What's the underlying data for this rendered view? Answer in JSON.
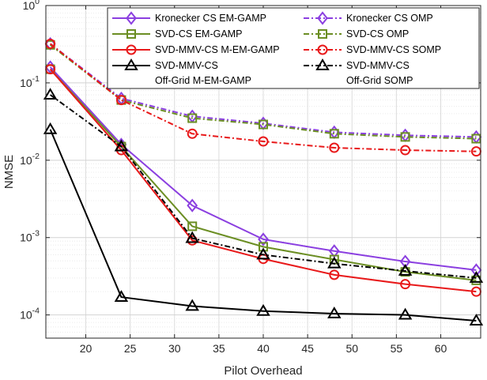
{
  "chart_data": {
    "type": "line",
    "title": "",
    "xlabel": "Pilot Overhead",
    "ylabel": "NMSE",
    "yscale": "log",
    "xlim": [
      15.5,
      64.5
    ],
    "ylim_exponents": [
      -4.3,
      0
    ],
    "grid": true,
    "legend_position": "top-right",
    "x": [
      16,
      24,
      32,
      40,
      48,
      56,
      64
    ],
    "x_ticks": [
      "20",
      "25",
      "30",
      "35",
      "40",
      "45",
      "50",
      "55",
      "60"
    ],
    "y_ticks": [
      {
        "base": "10",
        "exp": "0",
        "exponent": 0
      },
      {
        "base": "10",
        "exp": "-1",
        "exponent": -1
      },
      {
        "base": "10",
        "exp": "-2",
        "exponent": -2
      },
      {
        "base": "10",
        "exp": "-3",
        "exponent": -3
      },
      {
        "base": "10",
        "exp": "-4",
        "exponent": -4
      }
    ],
    "series": [
      {
        "name": [
          "Kronecker CS EM-GAMP"
        ],
        "color": "#8B3FE0",
        "dash": "solid",
        "marker": "diamond",
        "values": [
          0.16,
          0.016,
          0.0026,
          0.00095,
          0.00067,
          0.00049,
          0.00038
        ]
      },
      {
        "name": [
          "Kronecker CS OMP"
        ],
        "color": "#8B3FE0",
        "dash": "dashdot",
        "marker": "diamond",
        "values": [
          0.32,
          0.063,
          0.037,
          0.03,
          0.023,
          0.021,
          0.02
        ]
      },
      {
        "name": [
          "SVD-CS EM-GAMP"
        ],
        "color": "#6B8E23",
        "dash": "solid",
        "marker": "square",
        "values": [
          0.15,
          0.015,
          0.0014,
          0.00076,
          0.00052,
          0.00036,
          0.00028
        ]
      },
      {
        "name": [
          "SVD-CS OMP"
        ],
        "color": "#6B8E23",
        "dash": "dashdot",
        "marker": "square",
        "values": [
          0.31,
          0.06,
          0.035,
          0.029,
          0.022,
          0.02,
          0.019
        ]
      },
      {
        "name": [
          "SVD-MMV-CS M-EM-GAMP"
        ],
        "color": "#E8191A",
        "dash": "solid",
        "marker": "circle",
        "values": [
          0.15,
          0.0135,
          0.00092,
          0.00053,
          0.00033,
          0.00025,
          0.0002
        ]
      },
      {
        "name": [
          "SVD-MMV-CS SOMP"
        ],
        "color": "#E8191A",
        "dash": "dashdot",
        "marker": "circle",
        "values": [
          0.32,
          0.06,
          0.022,
          0.0175,
          0.0145,
          0.0135,
          0.013
        ]
      },
      {
        "name": [
          "SVD-MMV-CS",
          "Off-Grid M-EM-GAMP"
        ],
        "color": "#000000",
        "dash": "solid",
        "marker": "triangle",
        "values": [
          0.025,
          0.00017,
          0.00013,
          0.000112,
          0.000104,
          0.0001,
          8.4e-05
        ]
      },
      {
        "name": [
          "SVD-MMV-CS",
          "Off-Grid SOMP"
        ],
        "color": "#000000",
        "dash": "dashdot",
        "marker": "triangle",
        "values": [
          0.07,
          0.015,
          0.00098,
          0.0006,
          0.00046,
          0.00037,
          0.0003
        ]
      }
    ]
  }
}
